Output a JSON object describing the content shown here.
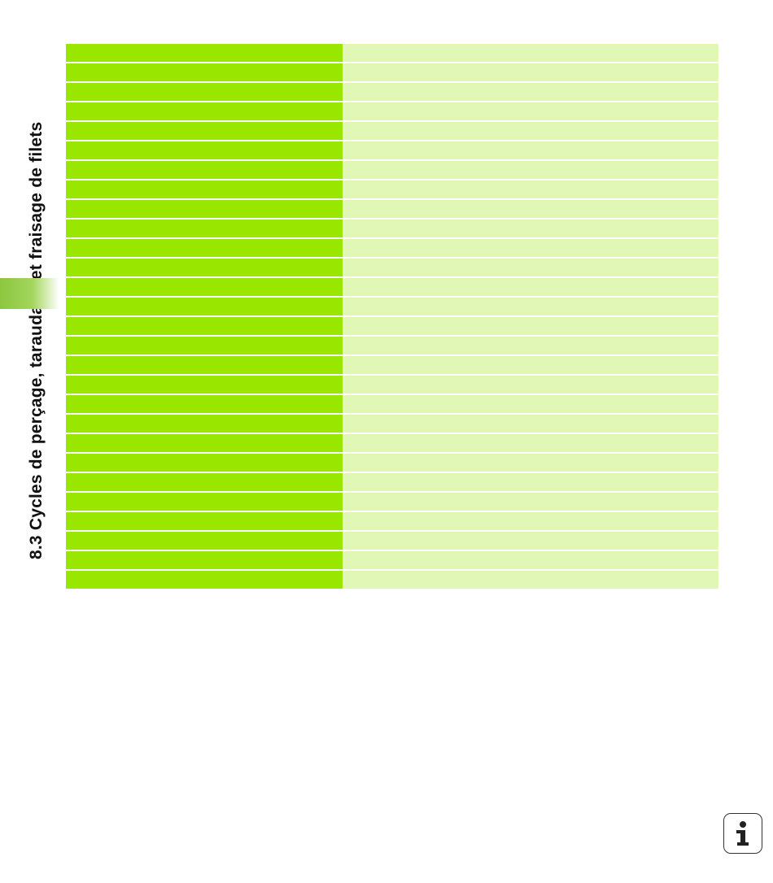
{
  "page": {
    "side_title": "8.3 Cycles de perçage, taraudage et fraisage de filets"
  },
  "table": {
    "rows": [
      {
        "left": "",
        "right": ""
      },
      {
        "left": "",
        "right": ""
      },
      {
        "left": "",
        "right": ""
      },
      {
        "left": "",
        "right": ""
      },
      {
        "left": "",
        "right": ""
      },
      {
        "left": "",
        "right": ""
      },
      {
        "left": "",
        "right": ""
      },
      {
        "left": "",
        "right": ""
      },
      {
        "left": "",
        "right": ""
      },
      {
        "left": "",
        "right": ""
      },
      {
        "left": "",
        "right": ""
      },
      {
        "left": "",
        "right": ""
      },
      {
        "left": "",
        "right": ""
      },
      {
        "left": "",
        "right": ""
      },
      {
        "left": "",
        "right": ""
      },
      {
        "left": "",
        "right": ""
      },
      {
        "left": "",
        "right": ""
      },
      {
        "left": "",
        "right": ""
      },
      {
        "left": "",
        "right": ""
      },
      {
        "left": "",
        "right": ""
      },
      {
        "left": "",
        "right": ""
      },
      {
        "left": "",
        "right": ""
      },
      {
        "left": "",
        "right": ""
      },
      {
        "left": "",
        "right": ""
      },
      {
        "left": "",
        "right": ""
      },
      {
        "left": "",
        "right": ""
      },
      {
        "left": "",
        "right": ""
      },
      {
        "left": "",
        "right": ""
      }
    ],
    "colors": {
      "left": "#99e600",
      "right": "#e0f7b5"
    }
  },
  "info_button": {
    "icon": "info-icon"
  }
}
